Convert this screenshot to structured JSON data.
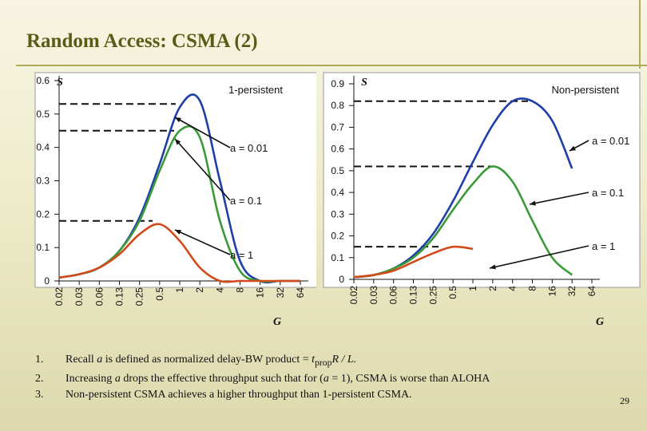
{
  "slide": {
    "title": "Random Access: CSMA (2)",
    "page_number": "29",
    "notes": [
      {
        "num": "1.",
        "parts": [
          "Recall ",
          "a",
          " is defined as normalized delay-BW product = ",
          "t",
          "prop",
          "R / L."
        ]
      },
      {
        "num": "2.",
        "parts": [
          "Increasing ",
          "a",
          " drops the effective throughput such that for (",
          "a",
          " = 1), CSMA is worse than ALOHA"
        ]
      },
      {
        "num": "3.",
        "parts": [
          " Non-persistent CSMA achieves a higher throughput than 1-persistent CSMA."
        ]
      }
    ]
  },
  "chart_data": [
    {
      "type": "line",
      "title": "1-persistent",
      "ylabel": "S",
      "xlabel": "G",
      "x_scale": "log2",
      "categories": [
        "0.02",
        "0.03",
        "0.06",
        "0.13",
        "0.25",
        "0.5",
        "1",
        "2",
        "4",
        "8",
        "16",
        "32",
        "64"
      ],
      "yticks": [
        "0",
        "0.1",
        "0.2",
        "0.3",
        "0.4",
        "0.5",
        "0.6"
      ],
      "ylim": [
        0,
        0.6
      ],
      "series": [
        {
          "name": "a = 0.01",
          "color": "#1f3ea8",
          "values": [
            0.01,
            0.02,
            0.04,
            0.09,
            0.19,
            0.35,
            0.52,
            0.54,
            0.3,
            0.06,
            0.0,
            0.0,
            0.0
          ]
        },
        {
          "name": "a = 0.1",
          "color": "#3a9a38",
          "values": [
            0.01,
            0.02,
            0.04,
            0.09,
            0.18,
            0.33,
            0.45,
            0.43,
            0.18,
            0.03,
            0.0,
            0.0,
            0.0
          ]
        },
        {
          "name": "a = 1",
          "color": "#d24a1a",
          "values": [
            0.01,
            0.02,
            0.04,
            0.08,
            0.14,
            0.17,
            0.12,
            0.04,
            0.0,
            0.0,
            0.0,
            0.0,
            0.0
          ]
        }
      ],
      "annotations": [
        {
          "text": "a = 0.01",
          "series": "a = 0.01"
        },
        {
          "text": "a = 0.1",
          "series": "a = 0.1"
        },
        {
          "text": "a = 1",
          "series": "a = 1"
        }
      ],
      "dashed_markers": [
        0.53,
        0.45,
        0.18
      ]
    },
    {
      "type": "line",
      "title": "Non-persistent",
      "ylabel": "S",
      "xlabel": "G",
      "x_scale": "log2",
      "categories": [
        "0.02",
        "0.03",
        "0.06",
        "0.13",
        "0.25",
        "0.5",
        "1",
        "2",
        "4",
        "8",
        "16",
        "32",
        "64"
      ],
      "yticks": [
        "0",
        "0.1",
        "0.2",
        "0.3",
        "0.4",
        "0.5",
        "0.6",
        "0.7",
        "0.8",
        "0.9"
      ],
      "ylim": [
        0,
        0.9
      ],
      "series": [
        {
          "name": "a = 0.01",
          "color": "#1f3ea8",
          "values": [
            0.01,
            0.02,
            0.05,
            0.11,
            0.21,
            0.36,
            0.54,
            0.71,
            0.82,
            0.82,
            0.73,
            0.51,
            null
          ]
        },
        {
          "name": "a = 0.1",
          "color": "#3a9a38",
          "values": [
            0.01,
            0.02,
            0.05,
            0.1,
            0.19,
            0.32,
            0.44,
            0.52,
            0.45,
            0.27,
            0.1,
            0.02,
            null
          ]
        },
        {
          "name": "a = 1",
          "color": "#d24a1a",
          "values": [
            0.01,
            0.02,
            0.04,
            0.08,
            0.12,
            0.15,
            0.14,
            null,
            null,
            null,
            null,
            null,
            null
          ]
        }
      ],
      "annotations": [
        {
          "text": "a = 0.01",
          "series": "a = 0.01"
        },
        {
          "text": "a = 0.1",
          "series": "a = 0.1"
        },
        {
          "text": "a = 1",
          "series": "a = 1"
        }
      ],
      "dashed_markers": [
        0.82,
        0.52,
        0.15
      ]
    }
  ]
}
